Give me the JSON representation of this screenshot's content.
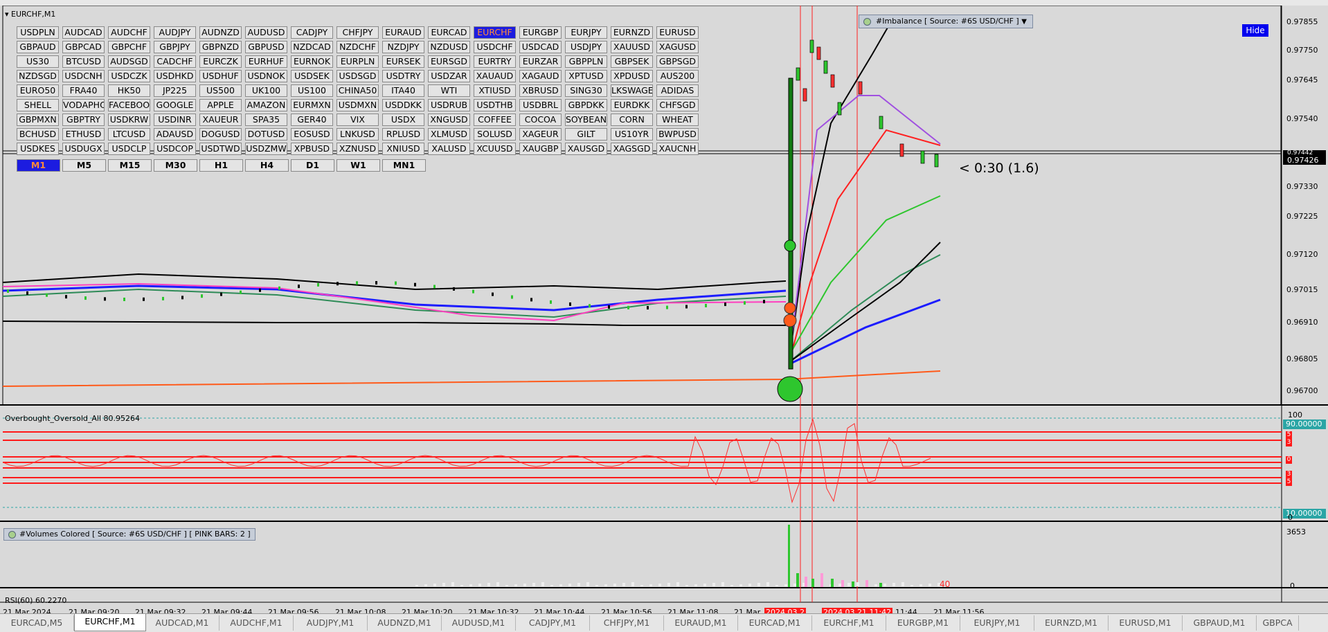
{
  "window_title": "EURCHF,M1",
  "symbols": [
    [
      "USDPLN",
      "AUDCAD",
      "AUDCHF",
      "AUDJPY",
      "AUDNZD",
      "AUDUSD",
      "CADJPY",
      "CHFJPY",
      "EURAUD",
      "EURCAD",
      "EURCHF",
      "EURGBP",
      "EURJPY",
      "EURNZD",
      "EURUSD"
    ],
    [
      "GBPAUD",
      "GBPCAD",
      "GBPCHF",
      "GBPJPY",
      "GBPNZD",
      "GBPUSD",
      "NZDCAD",
      "NZDCHF",
      "NZDJPY",
      "NZDUSD",
      "USDCHF",
      "USDCAD",
      "USDJPY",
      "XAUUSD",
      "XAGUSD"
    ],
    [
      "US30",
      "BTCUSD",
      "AUDSGD",
      "CADCHF",
      "EURCZK",
      "EURHUF",
      "EURNOK",
      "EURPLN",
      "EURSEK",
      "EURSGD",
      "EURTRY",
      "EURZAR",
      "GBPPLN",
      "GBPSEK",
      "GBPSGD"
    ],
    [
      "NZDSGD",
      "USDCNH",
      "USDCZK",
      "USDHKD",
      "USDHUF",
      "USDNOK",
      "USDSEK",
      "USDSGD",
      "USDTRY",
      "USDZAR",
      "XAUAUD",
      "XAGAUD",
      "XPTUSD",
      "XPDUSD",
      "AUS200"
    ],
    [
      "EURO50",
      "FRA40",
      "HK50",
      "JP225",
      "US500",
      "UK100",
      "US100",
      "CHINA50",
      "ITA40",
      "WTI",
      "XTIUSD",
      "XBRUSD",
      "SING30",
      "LKSWAGEN",
      "ADIDAS"
    ],
    [
      "SHELL",
      "VODAPHONE",
      "FACEBOOK",
      "GOOGLE",
      "APPLE",
      "AMAZON",
      "EURMXN",
      "USDMXN",
      "USDDKK",
      "USDRUB",
      "USDTHB",
      "USDBRL",
      "GBPDKK",
      "EURDKK",
      "CHFSGD"
    ],
    [
      "GBPMXN",
      "GBPTRY",
      "USDKRW",
      "USDINR",
      "XAUEUR",
      "SPA35",
      "GER40",
      "VIX",
      "USDX",
      "XNGUSD",
      "COFFEE",
      "COCOA",
      "SOYBEANS",
      "CORN",
      "WHEAT"
    ],
    [
      "BCHUSD",
      "ETHUSD",
      "LTCUSD",
      "ADAUSD",
      "DOGUSD",
      "DOTUSD",
      "EOSUSD",
      "LNKUSD",
      "RPLUSD",
      "XLMUSD",
      "SOLUSD",
      "XAGEUR",
      "GILT",
      "US10YR",
      "BWPUSD"
    ],
    [
      "USDKES",
      "USDUGX",
      "USDCLP",
      "USDCOP",
      "USDTWD",
      "USDZMW",
      "XPBUSD",
      "XZNUSD",
      "XNIUSD",
      "XALUSD",
      "XCUUSD",
      "XAUGBP",
      "XAUSGD",
      "XAGSGD",
      "XAUCNH"
    ]
  ],
  "active_symbol": "EURCHF",
  "timeframes": [
    "M1",
    "M5",
    "M15",
    "M30",
    "H1",
    "H4",
    "D1",
    "W1",
    "MN1"
  ],
  "active_timeframe": "M1",
  "imbalance_label": "#Imbalance [ Source: #6S USD/CHF ]",
  "hide_label": "Hide",
  "countdown": "< 0:30 (1.6)",
  "price_axis": [
    "0.97855",
    "0.97750",
    "0.97645",
    "0.97540",
    "0.97330",
    "0.97225",
    "0.97120",
    "0.97015",
    "0.96910",
    "0.96805",
    "0.96700"
  ],
  "current_price": "0.97426",
  "current_price_top": "0.97442",
  "oscillator": {
    "title": "Overbought_Oversold_All 80.95264",
    "label_100": "100",
    "level_90": "90.00000",
    "level_10": "10.00000",
    "label_0": "0",
    "tags": [
      "5",
      "3",
      "0",
      "3",
      "5"
    ]
  },
  "volumes": {
    "title": "#Volumes Colored [ Source: #6S USD/CHF ]  [ PINK BARS: 2 ]",
    "max": "3653",
    "zero": "0",
    "count": "40"
  },
  "rsi_label": "RSI(60) 60.2270",
  "x_axis": [
    {
      "text": "21 Mar 2024",
      "hl": false
    },
    {
      "text": "21 Mar 09:20",
      "hl": false
    },
    {
      "text": "21 Mar 09:32",
      "hl": false
    },
    {
      "text": "21 Mar 09:44",
      "hl": false
    },
    {
      "text": "21 Mar 09:56",
      "hl": false
    },
    {
      "text": "21 Mar 10:08",
      "hl": false
    },
    {
      "text": "21 Mar 10:20",
      "hl": false
    },
    {
      "text": "21 Mar 10:32",
      "hl": false
    },
    {
      "text": "21 Mar 10:44",
      "hl": false
    },
    {
      "text": "21 Mar 10:56",
      "hl": false
    },
    {
      "text": "21 Mar 11:08",
      "hl": false
    },
    {
      "text": "21 Mar",
      "hl": false
    },
    {
      "text": "2024.03.2",
      "hl": true
    },
    {
      "text": "2024.03.21 11:42",
      "hl": true
    },
    {
      "text": "11:44",
      "hl": false
    },
    {
      "text": "21 Mar 11:56",
      "hl": false
    }
  ],
  "tabs": [
    "EURCAD,M5",
    "EURCHF,M1",
    "AUDCAD,M1",
    "AUDCHF,M1",
    "AUDJPY,M1",
    "AUDNZD,M1",
    "AUDUSD,M1",
    "CADJPY,M1",
    "CHFJPY,M1",
    "EURAUD,M1",
    "EURCAD,M1",
    "EURCHF,M1",
    "EURGBP,M1",
    "EURJPY,M1",
    "EURNZD,M1",
    "EURUSD,M1",
    "GBPAUD,M1",
    "GBPCA"
  ],
  "active_tab_index": 1
}
